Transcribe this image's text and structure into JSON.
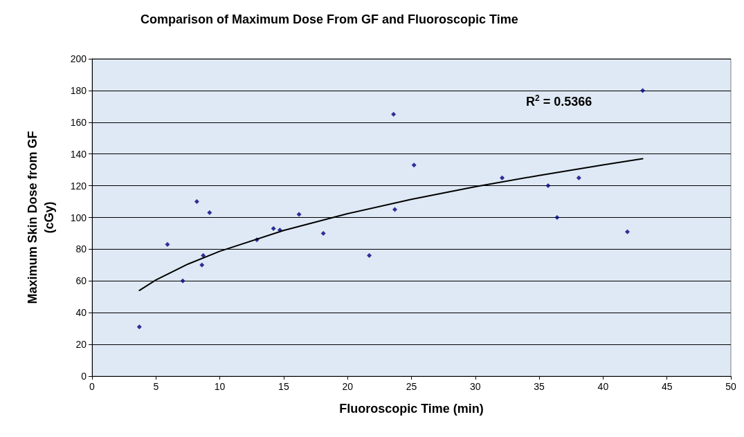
{
  "chart_data": {
    "type": "scatter",
    "title": "Comparison of Maximum Dose From GF and Fluoroscopic Time",
    "xlabel": "Fluoroscopic Time (min)",
    "ylabel": "Maximum Skin Dose from GF\n(cGy)",
    "series": [
      {
        "color": "#000080",
        "marker": "diamond",
        "x": [
          3.7,
          5.9,
          7.1,
          8.2,
          8.6,
          8.7,
          9.2,
          12.9,
          14.2,
          14.7,
          16.2,
          18.1,
          21.7,
          23.6,
          23.7,
          25.2,
          32.1,
          35.7,
          36.4,
          38.1,
          41.9,
          43.1
        ],
        "values": [
          31,
          83,
          60,
          110,
          70,
          76,
          103,
          86,
          93,
          92,
          102,
          90,
          76,
          165,
          105,
          133,
          125,
          120,
          100,
          125,
          91,
          180
        ]
      },
      {
        "type": "line",
        "color": "#000000",
        "marker": "none",
        "line_style": "solid",
        "x": [
          3.7,
          5,
          7.5,
          10,
          15,
          20,
          25,
          30,
          35,
          40,
          43.1
        ],
        "values": [
          54,
          60.6,
          70.6,
          78.7,
          91.8,
          102.4,
          111.4,
          119.4,
          126.5,
          133.1,
          137
        ]
      }
    ],
    "annotations": [
      "R$^{2}$ = 0.5366"
    ],
    "xlim": [
      0,
      50
    ],
    "xticks": [
      0,
      5,
      10,
      15,
      20,
      25,
      30,
      35,
      40,
      45,
      50
    ],
    "ylim": [
      0,
      200
    ],
    "yticks": [
      0,
      20,
      40,
      60,
      80,
      100,
      120,
      140,
      160,
      180,
      200
    ],
    "grid": "y"
  }
}
